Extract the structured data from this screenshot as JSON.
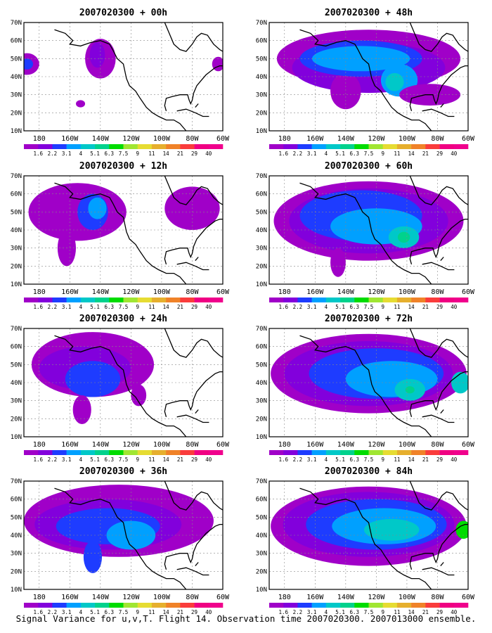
{
  "caption": "Signal Variance for u,v,T. Flight 14. Observation time 2007020300. 2007013000 ensemble.",
  "chart_data": {
    "type": "heatmap",
    "panels": [
      {
        "title": "2007020300 + 00h",
        "column": "left",
        "row": 1
      },
      {
        "title": "2007020300 + 48h",
        "column": "right",
        "row": 1
      },
      {
        "title": "2007020300 + 12h",
        "column": "left",
        "row": 2
      },
      {
        "title": "2007020300 + 60h",
        "column": "right",
        "row": 2
      },
      {
        "title": "2007020300 + 24h",
        "column": "left",
        "row": 3
      },
      {
        "title": "2007020300 + 72h",
        "column": "right",
        "row": 3
      },
      {
        "title": "2007020300 + 36h",
        "column": "left",
        "row": 4
      },
      {
        "title": "2007020300 + 84h",
        "column": "right",
        "row": 4
      }
    ],
    "x_tick_labels": [
      "180",
      "160W",
      "140W",
      "120W",
      "100W",
      "80W",
      "60W"
    ],
    "y_tick_labels": [
      "70N",
      "60N",
      "50N",
      "40N",
      "30N",
      "20N",
      "10N"
    ],
    "lon_range": [
      170,
      300
    ],
    "lat_range": [
      10,
      70
    ],
    "grid": true,
    "colorbar": {
      "levels": [
        "1.6",
        "2.2",
        "3.1",
        "4",
        "5.1",
        "6.3",
        "7.5",
        "9",
        "11",
        "14",
        "21",
        "29",
        "40"
      ],
      "colors": [
        "#a000c8",
        "#8200dc",
        "#1e3cff",
        "#00a0ff",
        "#00c8c8",
        "#00d28c",
        "#00dc00",
        "#a0e632",
        "#e6dc32",
        "#e6af2d",
        "#f08228",
        "#fa3c3c",
        "#f00082",
        "#f0008c"
      ]
    }
  }
}
